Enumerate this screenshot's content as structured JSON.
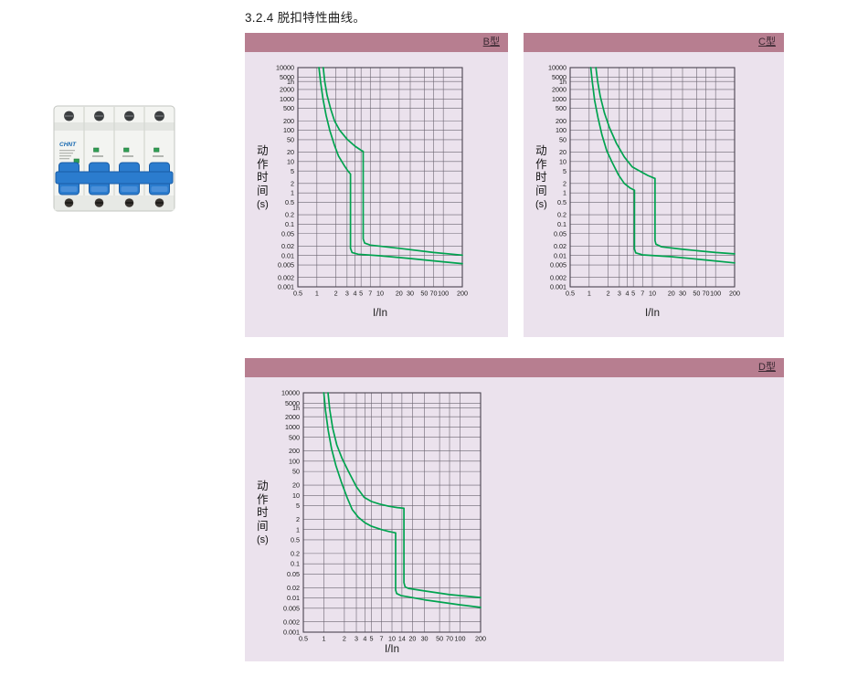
{
  "page": {
    "title": "3.2.4 脱扣特性曲线。"
  },
  "product": {
    "logo_text": "CHNT"
  },
  "colors": {
    "panel_header_bg": "#b77e90",
    "panel_header_text": "#3b2a33",
    "panel_bg": "#ebe2ed",
    "grid_line": "#6b6571",
    "plot_frame": "#49434f",
    "tick_text": "#1a1a1a",
    "curve_green": "#00a34f",
    "breaker_blue": "#2b7cce",
    "indicator_green": "#2f9e53"
  },
  "chart_data": [
    {
      "id": "B",
      "header": "B型",
      "type": "line",
      "xlabel": "I/In",
      "ylabel": "动作时间(s)",
      "ylabel_chars": [
        "动",
        "作",
        "时",
        "间",
        "(s)"
      ],
      "xlim": [
        0.5,
        200
      ],
      "ylim": [
        0.001,
        10000
      ],
      "grid": true,
      "x_tick_labels": [
        "0.5",
        "1",
        "2",
        "3",
        "4",
        "5",
        "7",
        "10",
        "20",
        "30",
        "50",
        "70",
        "100",
        "200"
      ],
      "x_tick_values": [
        0.5,
        1,
        2,
        3,
        4,
        5,
        7,
        10,
        20,
        30,
        50,
        70,
        100,
        200
      ],
      "y_tick_labels": [
        "10000",
        "5000",
        "1h",
        "2000",
        "1000",
        "500",
        "200",
        "100",
        "50",
        "20",
        "10",
        "5",
        "2",
        "1",
        "0.5",
        "0.2",
        "0.1",
        "0.05",
        "0.02",
        "0.01",
        "0.005",
        "0.002",
        "0.001"
      ],
      "y_tick_values": [
        10000,
        5000,
        3600,
        2000,
        1000,
        500,
        200,
        100,
        50,
        20,
        10,
        5,
        2,
        1,
        0.5,
        0.2,
        0.1,
        0.05,
        0.02,
        0.01,
        0.005,
        0.002,
        0.001
      ],
      "series": [
        {
          "name": "lower-limit",
          "points": [
            [
              1.08,
              10000
            ],
            [
              1.14,
              3600
            ],
            [
              1.25,
              1000
            ],
            [
              1.4,
              300
            ],
            [
              1.6,
              100
            ],
            [
              1.9,
              33
            ],
            [
              2.2,
              15
            ],
            [
              2.7,
              7.5
            ],
            [
              3.1,
              5
            ],
            [
              3.4,
              4
            ],
            [
              3.4,
              0.017
            ],
            [
              3.6,
              0.0125
            ],
            [
              4.5,
              0.011
            ],
            [
              10,
              0.0098
            ],
            [
              30,
              0.008
            ],
            [
              100,
              0.0063
            ],
            [
              200,
              0.0055
            ]
          ]
        },
        {
          "name": "upper-limit",
          "points": [
            [
              1.26,
              10000
            ],
            [
              1.33,
              3600
            ],
            [
              1.45,
              1300
            ],
            [
              1.65,
              480
            ],
            [
              1.9,
              200
            ],
            [
              2.3,
              100
            ],
            [
              3.0,
              52
            ],
            [
              4.0,
              31
            ],
            [
              5.0,
              23
            ],
            [
              5.4,
              21
            ],
            [
              5.4,
              0.034
            ],
            [
              5.7,
              0.025
            ],
            [
              7,
              0.0215
            ],
            [
              20,
              0.017
            ],
            [
              70,
              0.0125
            ],
            [
              200,
              0.0103
            ]
          ]
        }
      ]
    },
    {
      "id": "C",
      "header": "C型",
      "type": "line",
      "xlabel": "I/In",
      "ylabel": "动作时间(s)",
      "ylabel_chars": [
        "动",
        "作",
        "时",
        "间",
        "(s)"
      ],
      "xlim": [
        0.5,
        200
      ],
      "ylim": [
        0.001,
        10000
      ],
      "grid": true,
      "x_tick_labels": [
        "0.5",
        "1",
        "2",
        "3",
        "4",
        "5",
        "7",
        "10",
        "20",
        "30",
        "50",
        "70",
        "100",
        "200"
      ],
      "x_tick_values": [
        0.5,
        1,
        2,
        3,
        4,
        5,
        7,
        10,
        20,
        30,
        50,
        70,
        100,
        200
      ],
      "y_tick_labels": [
        "10000",
        "5000",
        "1h",
        "2000",
        "1000",
        "500",
        "200",
        "100",
        "50",
        "20",
        "10",
        "5",
        "2",
        "1",
        "0.5",
        "0.2",
        "0.1",
        "0.05",
        "0.02",
        "0.01",
        "0.005",
        "0.002",
        "0.001"
      ],
      "y_tick_values": [
        10000,
        5000,
        3600,
        2000,
        1000,
        500,
        200,
        100,
        50,
        20,
        10,
        5,
        2,
        1,
        0.5,
        0.2,
        0.1,
        0.05,
        0.02,
        0.01,
        0.005,
        0.002,
        0.001
      ],
      "series": [
        {
          "name": "lower-limit",
          "points": [
            [
              1.06,
              10000
            ],
            [
              1.12,
              3600
            ],
            [
              1.22,
              900
            ],
            [
              1.38,
              250
            ],
            [
              1.6,
              70
            ],
            [
              1.9,
              22
            ],
            [
              2.35,
              8.8
            ],
            [
              2.9,
              3.8
            ],
            [
              3.6,
              2.0
            ],
            [
              4.4,
              1.45
            ],
            [
              5.2,
              1.22
            ],
            [
              5.2,
              0.016
            ],
            [
              5.45,
              0.0122
            ],
            [
              7,
              0.0105
            ],
            [
              20,
              0.0092
            ],
            [
              70,
              0.0072
            ],
            [
              200,
              0.0058
            ]
          ]
        },
        {
          "name": "upper-limit",
          "points": [
            [
              1.28,
              10000
            ],
            [
              1.36,
              3600
            ],
            [
              1.5,
              1200
            ],
            [
              1.75,
              350
            ],
            [
              2.1,
              120
            ],
            [
              2.7,
              38
            ],
            [
              3.6,
              14
            ],
            [
              4.8,
              6.8
            ],
            [
              6.4,
              4.9
            ],
            [
              8.5,
              3.6
            ],
            [
              10.5,
              3.0
            ],
            [
              11,
              2.9
            ],
            [
              11,
              0.03
            ],
            [
              11.4,
              0.023
            ],
            [
              14,
              0.019
            ],
            [
              30,
              0.0158
            ],
            [
              100,
              0.0125
            ],
            [
              200,
              0.0113
            ]
          ]
        }
      ]
    },
    {
      "id": "D",
      "header": "D型",
      "type": "line",
      "xlabel": "I/In",
      "ylabel": "动作时间(s)",
      "ylabel_chars": [
        "动",
        "作",
        "时",
        "间",
        "(s)"
      ],
      "xlim": [
        0.5,
        200
      ],
      "ylim": [
        0.001,
        10000
      ],
      "grid": true,
      "x_tick_labels": [
        "0.5",
        "1",
        "2",
        "3",
        "4",
        "5",
        "7",
        "10",
        "14",
        "20",
        "30",
        "50",
        "70",
        "100",
        "200"
      ],
      "x_tick_values": [
        0.5,
        1,
        2,
        3,
        4,
        5,
        7,
        10,
        14,
        20,
        30,
        50,
        70,
        100,
        200
      ],
      "y_tick_labels": [
        "10000",
        "5000",
        "1h",
        "2000",
        "1000",
        "500",
        "200",
        "100",
        "50",
        "20",
        "10",
        "5",
        "2",
        "1",
        "0.5",
        "0.2",
        "0.1",
        "0.05",
        "0.02",
        "0.01",
        "0.005",
        "0.002",
        "0.001"
      ],
      "y_tick_values": [
        10000,
        5000,
        3600,
        2000,
        1000,
        500,
        200,
        100,
        50,
        20,
        10,
        5,
        2,
        1,
        0.5,
        0.2,
        0.1,
        0.05,
        0.02,
        0.01,
        0.005,
        0.002,
        0.001
      ],
      "series": [
        {
          "name": "lower-limit",
          "points": [
            [
              1.0,
              10000
            ],
            [
              1.06,
              3000
            ],
            [
              1.16,
              800
            ],
            [
              1.3,
              230
            ],
            [
              1.5,
              75
            ],
            [
              1.8,
              25
            ],
            [
              2.2,
              8.5
            ],
            [
              2.6,
              3.9
            ],
            [
              3.2,
              2.3
            ],
            [
              4.0,
              1.6
            ],
            [
              5.0,
              1.25
            ],
            [
              7,
              1.0
            ],
            [
              9,
              0.88
            ],
            [
              11.3,
              0.8
            ],
            [
              11.3,
              0.017
            ],
            [
              11.7,
              0.0135
            ],
            [
              13.5,
              0.0118
            ],
            [
              30,
              0.0088
            ],
            [
              100,
              0.0063
            ],
            [
              200,
              0.0053
            ]
          ]
        },
        {
          "name": "upper-limit",
          "points": [
            [
              1.15,
              10000
            ],
            [
              1.22,
              3200
            ],
            [
              1.35,
              900
            ],
            [
              1.55,
              300
            ],
            [
              1.85,
              120
            ],
            [
              2.3,
              50
            ],
            [
              3.0,
              18
            ],
            [
              3.9,
              8.8
            ],
            [
              5.0,
              6.6
            ],
            [
              6.5,
              5.6
            ],
            [
              9,
              4.8
            ],
            [
              12,
              4.4
            ],
            [
              15,
              4.2
            ],
            [
              15,
              0.028
            ],
            [
              15.6,
              0.021
            ],
            [
              17.5,
              0.019
            ],
            [
              30,
              0.016
            ],
            [
              70,
              0.0125
            ],
            [
              200,
              0.0103
            ]
          ]
        }
      ]
    }
  ]
}
